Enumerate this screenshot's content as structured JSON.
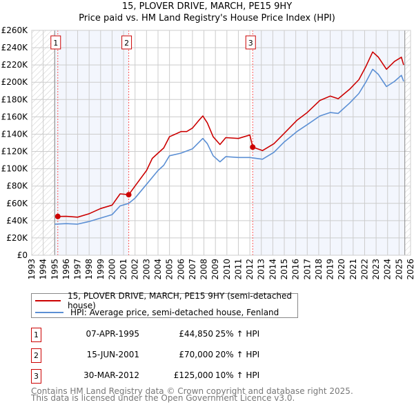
{
  "title_line1": "15, PLOVER DRIVE, MARCH, PE15 9HY",
  "title_line2": "Price paid vs. HM Land Registry's House Price Index (HPI)",
  "chart_data": {
    "type": "line",
    "xlim": [
      1993,
      2026
    ],
    "ylim": [
      0,
      260000
    ],
    "yticks": [
      0,
      20000,
      40000,
      60000,
      80000,
      100000,
      120000,
      140000,
      160000,
      180000,
      200000,
      220000,
      240000,
      260000
    ],
    "ytick_labels": [
      "£0",
      "£20K",
      "£40K",
      "£60K",
      "£80K",
      "£100K",
      "£120K",
      "£140K",
      "£160K",
      "£180K",
      "£200K",
      "£220K",
      "£240K",
      "£260K"
    ],
    "xticks": [
      "1993",
      "1994",
      "1995",
      "1996",
      "1997",
      "1998",
      "1999",
      "2000",
      "2001",
      "2002",
      "2003",
      "2004",
      "2005",
      "2006",
      "2007",
      "2008",
      "2009",
      "2010",
      "2011",
      "2012",
      "2013",
      "2014",
      "2015",
      "2016",
      "2017",
      "2018",
      "2019",
      "2020",
      "2021",
      "2022",
      "2023",
      "2024",
      "2025",
      "2026"
    ],
    "grid": true,
    "series": [
      {
        "name": "15, PLOVER DRIVE, MARCH, PE15 9HY (semi-detached house)",
        "color": "#cc0000",
        "x": [
          1995.27,
          1996,
          1997,
          1998,
          1999,
          2000,
          2000.7,
          2001.45,
          2002,
          2003,
          2003.5,
          2004,
          2004.5,
          2005,
          2005.5,
          2006,
          2006.5,
          2007,
          2007.5,
          2007.9,
          2008.3,
          2008.8,
          2009.4,
          2009.9,
          2011,
          2012.0,
          2012.25,
          2013.1,
          2014.1,
          2015,
          2016.1,
          2017,
          2018.1,
          2019,
          2019.7,
          2020.7,
          2021.5,
          2022.1,
          2022.7,
          2023.2,
          2023.9,
          2024.6,
          2025.2,
          2025.4
        ],
        "y": [
          44850,
          45000,
          44000,
          48000,
          54000,
          58000,
          71000,
          70000,
          80000,
          98000,
          112000,
          118000,
          124000,
          137000,
          140000,
          143000,
          143000,
          147000,
          155000,
          161000,
          153000,
          137000,
          128000,
          136000,
          135000,
          139000,
          125000,
          121000,
          129000,
          141000,
          156000,
          165000,
          179000,
          184000,
          181000,
          192000,
          203000,
          218000,
          235000,
          229000,
          215000,
          224000,
          229000,
          220000
        ]
      },
      {
        "name": "HPI: Average price, semi-detached house, Fenland",
        "color": "#5b8fd4",
        "x": [
          1995,
          1996,
          1997,
          1998,
          1999,
          2000,
          2000.7,
          2001.45,
          2002,
          2003,
          2004,
          2004.5,
          2005,
          2006,
          2007,
          2007.9,
          2008.3,
          2008.8,
          2009.4,
          2009.9,
          2011,
          2012,
          2013.1,
          2014.1,
          2015,
          2016.1,
          2017,
          2018.1,
          2019,
          2019.7,
          2020.7,
          2021.5,
          2022.1,
          2022.7,
          2023.2,
          2023.9,
          2024.6,
          2025.2,
          2025.4
        ],
        "y": [
          36000,
          36500,
          36000,
          39000,
          43000,
          47000,
          57000,
          60000,
          66000,
          82000,
          98000,
          104000,
          115000,
          118000,
          123000,
          135000,
          129000,
          115000,
          108000,
          114000,
          113000,
          113000,
          111000,
          119000,
          131000,
          143000,
          151000,
          161000,
          165000,
          164000,
          176000,
          187000,
          200000,
          215000,
          209000,
          195000,
          201000,
          208000,
          201000
        ]
      }
    ],
    "sales": [
      {
        "label": "1",
        "x": 1995.27,
        "y": 44850
      },
      {
        "label": "2",
        "x": 2001.45,
        "y": 70000
      },
      {
        "label": "3",
        "x": 2012.25,
        "y": 125000
      }
    ],
    "hatched_before": 1995,
    "hatched_after": 2025.5
  },
  "legend": {
    "property": "15, PLOVER DRIVE, MARCH, PE15 9HY (semi-detached house)",
    "hpi": "HPI: Average price, semi-detached house, Fenland"
  },
  "transactions": [
    {
      "num": "1",
      "date": "07-APR-1995",
      "price": "£44,850",
      "hpi": "25% ↑ HPI"
    },
    {
      "num": "2",
      "date": "15-JUN-2001",
      "price": "£70,000",
      "hpi": "20% ↑ HPI"
    },
    {
      "num": "3",
      "date": "30-MAR-2012",
      "price": "£125,000",
      "hpi": "10% ↑ HPI"
    }
  ],
  "footer_line1": "Contains HM Land Registry data © Crown copyright and database right 2025.",
  "footer_line2": "This data is licensed under the Open Government Licence v3.0."
}
